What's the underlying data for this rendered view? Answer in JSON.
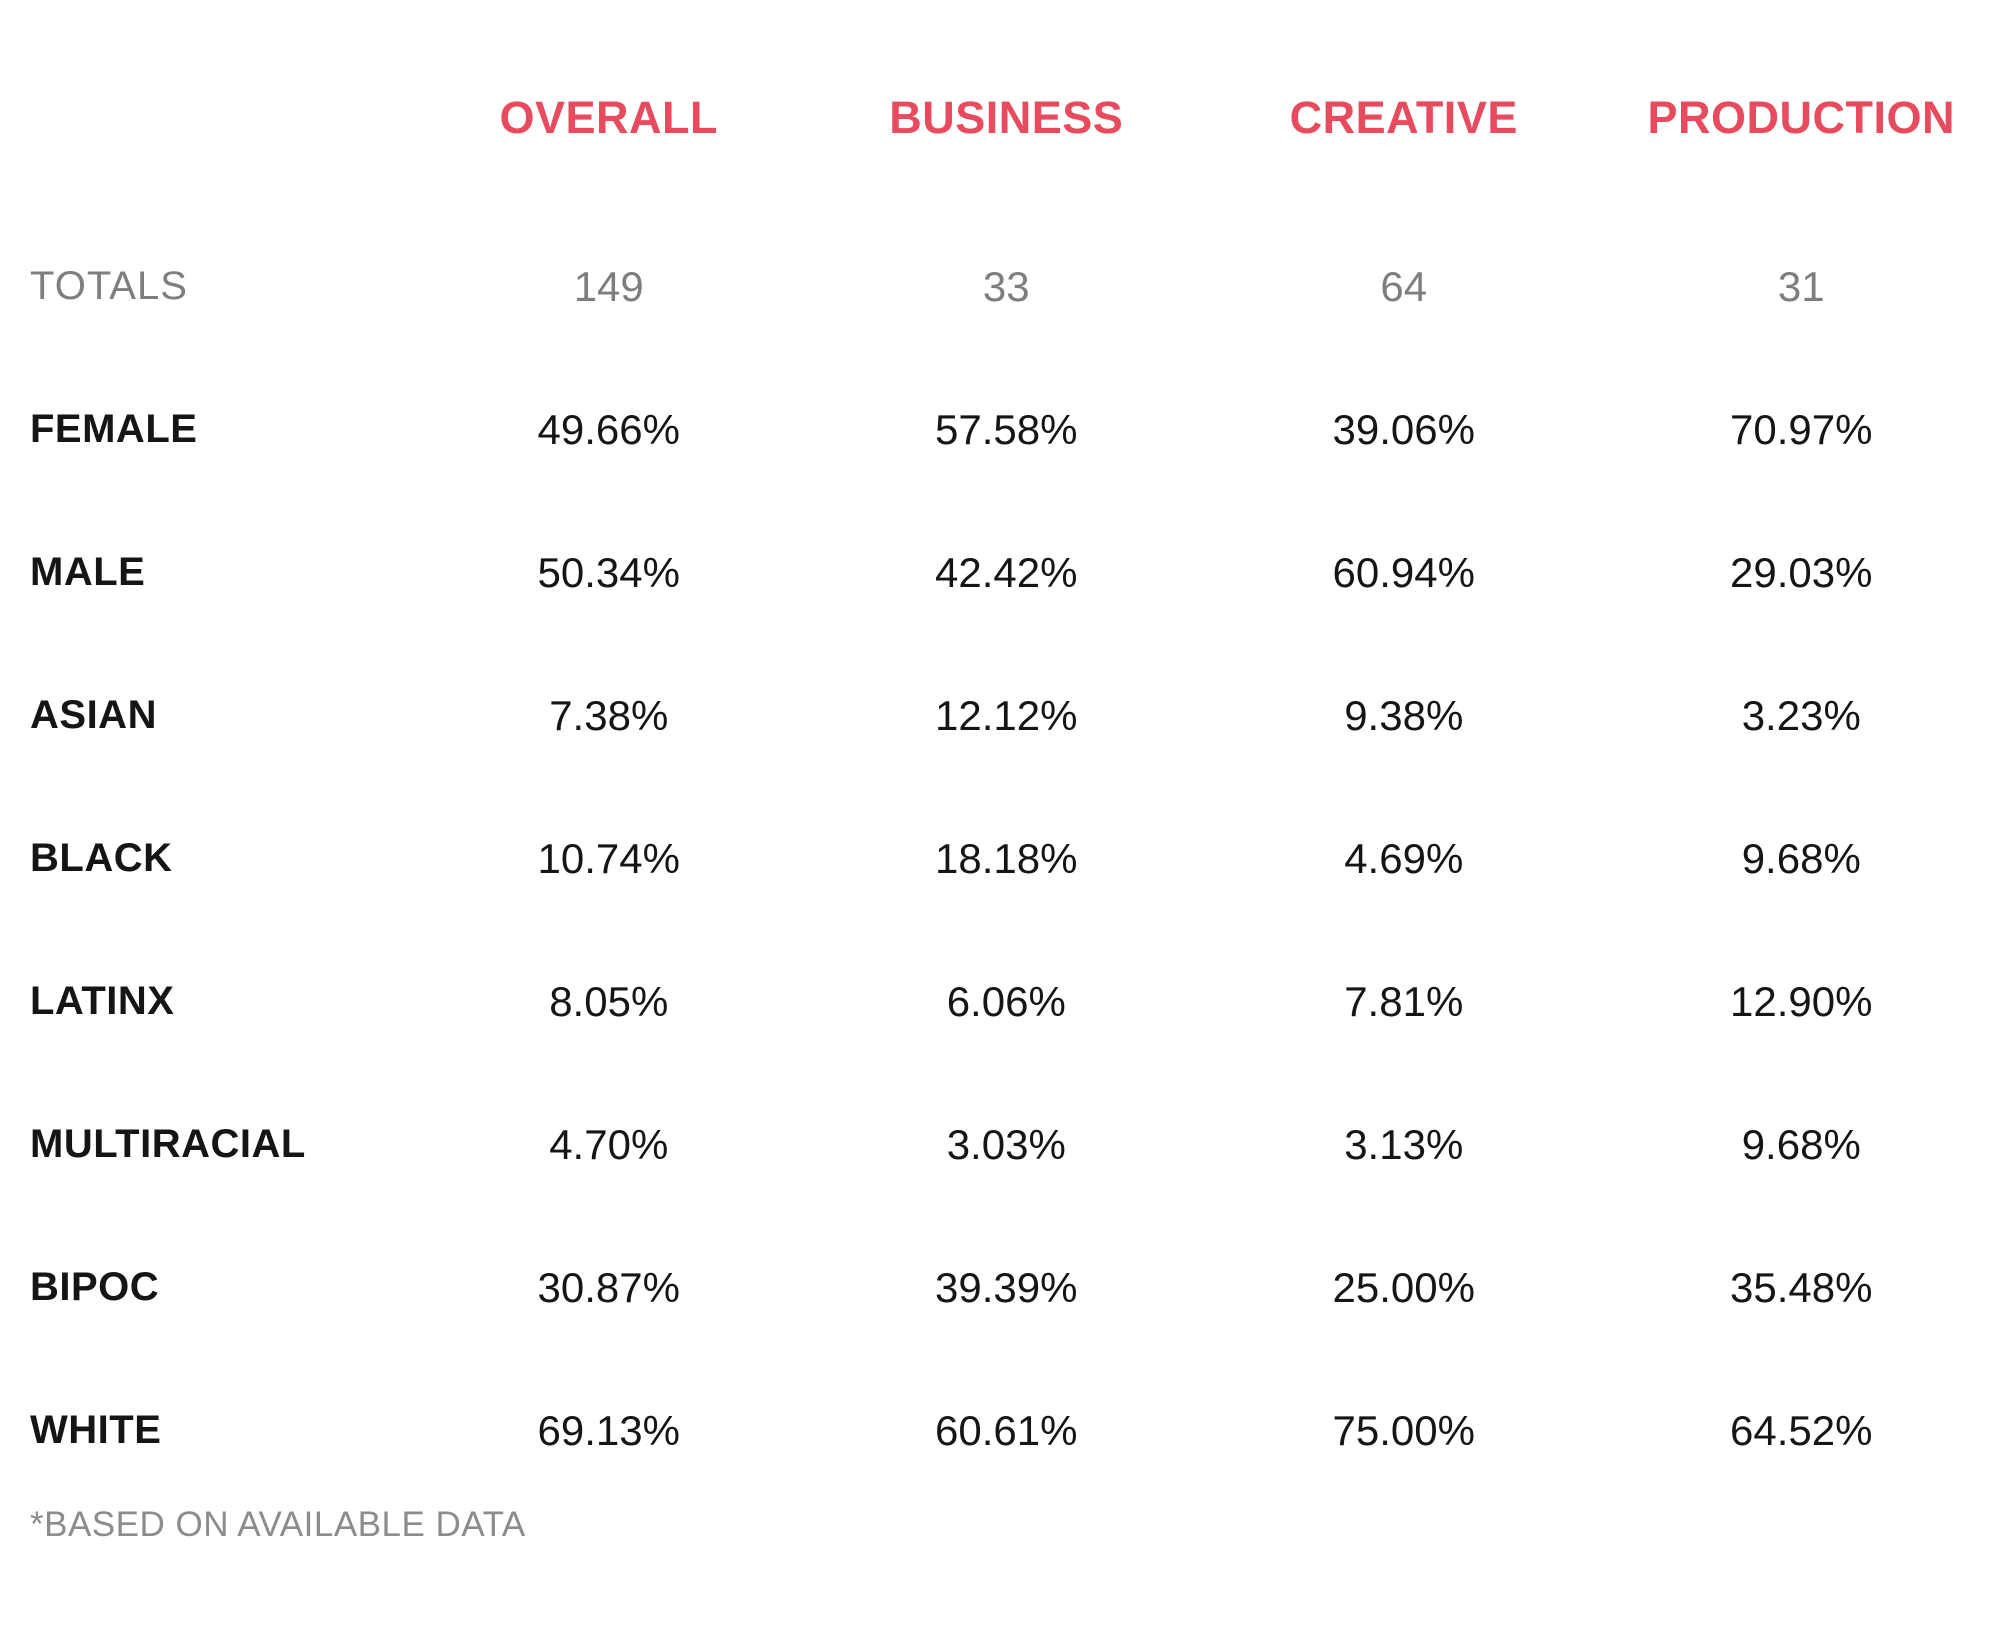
{
  "header": {
    "columns": [
      "OVERALL",
      "BUSINESS",
      "CREATIVE",
      "PRODUCTION"
    ]
  },
  "table": {
    "rows": [
      {
        "label": "TOTALS",
        "values": [
          "149",
          "33",
          "64",
          "31"
        ]
      },
      {
        "label": "FEMALE",
        "values": [
          "49.66%",
          "57.58%",
          "39.06%",
          "70.97%"
        ]
      },
      {
        "label": "MALE",
        "values": [
          "50.34%",
          "42.42%",
          "60.94%",
          "29.03%"
        ]
      },
      {
        "label": "ASIAN",
        "values": [
          "7.38%",
          "12.12%",
          "9.38%",
          "3.23%"
        ]
      },
      {
        "label": "BLACK",
        "values": [
          "10.74%",
          "18.18%",
          "4.69%",
          "9.68%"
        ]
      },
      {
        "label": "LATINX",
        "values": [
          "8.05%",
          "6.06%",
          "7.81%",
          "12.90%"
        ]
      },
      {
        "label": "MULTIRACIAL",
        "values": [
          "4.70%",
          "3.03%",
          "3.13%",
          "9.68%"
        ]
      },
      {
        "label": "BIPOC",
        "values": [
          "30.87%",
          "39.39%",
          "25.00%",
          "35.48%"
        ]
      },
      {
        "label": "WHITE",
        "values": [
          "69.13%",
          "60.61%",
          "75.00%",
          "64.52%"
        ]
      }
    ]
  },
  "footnote": "*BASED ON AVAILABLE DATA",
  "colors": {
    "accent": "#E84A5E",
    "muted": "#7E7E7E",
    "footnote": "#8C8C8C",
    "text": "#151515"
  },
  "chart_data": {
    "type": "table",
    "title": "",
    "columns": [
      "OVERALL",
      "BUSINESS",
      "CREATIVE",
      "PRODUCTION"
    ],
    "totals": [
      149,
      33,
      64,
      31
    ],
    "rows": [
      {
        "category": "FEMALE",
        "values_pct": [
          49.66,
          57.58,
          39.06,
          70.97
        ]
      },
      {
        "category": "MALE",
        "values_pct": [
          50.34,
          42.42,
          60.94,
          29.03
        ]
      },
      {
        "category": "ASIAN",
        "values_pct": [
          7.38,
          12.12,
          9.38,
          3.23
        ]
      },
      {
        "category": "BLACK",
        "values_pct": [
          10.74,
          18.18,
          4.69,
          9.68
        ]
      },
      {
        "category": "LATINX",
        "values_pct": [
          8.05,
          6.06,
          7.81,
          12.9
        ]
      },
      {
        "category": "MULTIRACIAL",
        "values_pct": [
          4.7,
          3.03,
          3.13,
          9.68
        ]
      },
      {
        "category": "BIPOC",
        "values_pct": [
          30.87,
          39.39,
          25.0,
          35.48
        ]
      },
      {
        "category": "WHITE",
        "values_pct": [
          69.13,
          60.61,
          75.0,
          64.52
        ]
      }
    ],
    "footnote": "*BASED ON AVAILABLE DATA",
    "layout": {
      "grid": false,
      "header_color": "#E84A5E",
      "body_color": "#151515",
      "muted_color": "#7E7E7E"
    }
  }
}
